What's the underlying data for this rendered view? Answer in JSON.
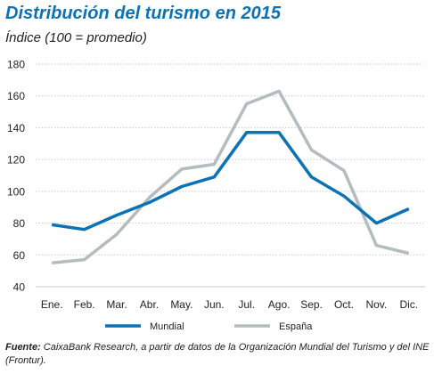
{
  "chart_data": {
    "type": "line",
    "title": "Distribución del turismo en 2015",
    "subtitle": "Índice (100 = promedio)",
    "categories": [
      "Ene.",
      "Feb.",
      "Mar.",
      "Abr.",
      "May.",
      "Jun.",
      "Jul.",
      "Ago.",
      "Sep.",
      "Oct.",
      "Nov.",
      "Dic."
    ],
    "series": [
      {
        "name": "Mundial",
        "color": "#0a72b5",
        "values": [
          79,
          76,
          85,
          93,
          103,
          109,
          137,
          137,
          109,
          97,
          80,
          89
        ]
      },
      {
        "name": "España",
        "color": "#b3bcc0",
        "values": [
          55,
          57,
          73,
          96,
          114,
          117,
          155,
          163,
          126,
          113,
          66,
          61
        ]
      }
    ],
    "ylim": [
      40,
      180
    ],
    "yticks": [
      40,
      60,
      80,
      100,
      120,
      140,
      160,
      180
    ],
    "grid": true,
    "legend": "bottom"
  },
  "source": {
    "label": "Fuente:",
    "text": " CaixaBank Research, a partir de datos de la Organización Mundial del Turismo y del INE (Frontur)."
  }
}
